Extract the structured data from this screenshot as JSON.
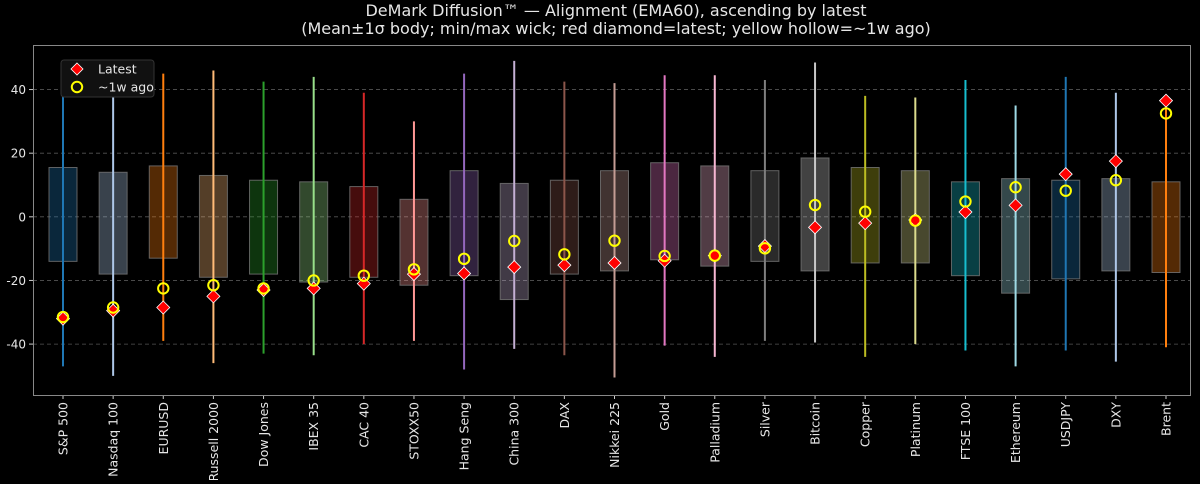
{
  "chart_data": {
    "type": "box-range",
    "title": "DeMark Diffusion™ — Alignment (EMA60), ascending by latest",
    "subtitle": "(Mean±1σ body; min/max wick; red diamond=latest; yellow hollow=~1w ago)",
    "xlabel": "",
    "ylabel": "",
    "ylim": [
      -56,
      54
    ],
    "yticks": [
      -40,
      -20,
      0,
      20,
      40
    ],
    "grid": "horizontal dashed",
    "legend": {
      "placement": "top-left",
      "entries": [
        {
          "label": "Latest",
          "marker": "red diamond",
          "color": "#ff0000"
        },
        {
          "label": "~1w ago",
          "marker": "yellow hollow circle",
          "color": "#ffff00"
        }
      ]
    },
    "categories": [
      "S&P 500",
      "Nasdaq 100",
      "EURUSD",
      "Russell 2000",
      "Dow Jones",
      "IBEX 35",
      "CAC 40",
      "STOXX50",
      "Hang Seng",
      "China 300",
      "DAX",
      "Nikkei 225",
      "Gold",
      "Palladium",
      "Silver",
      "Bitcoin",
      "Copper",
      "Platinum",
      "FTSE 100",
      "Ethereum",
      "USDJPY",
      "DXY",
      "Brent"
    ],
    "colors": [
      "#1f77b4",
      "#aec7e8",
      "#ff7f0e",
      "#ffbb78",
      "#2ca02c",
      "#98df8a",
      "#d62728",
      "#ff9896",
      "#9467bd",
      "#c5b0d5",
      "#8c564b",
      "#c49c94",
      "#e377c2",
      "#f7b6d2",
      "#7f7f7f",
      "#c7c7c7",
      "#bcbd22",
      "#dbdb8d",
      "#17becf",
      "#9edae5",
      "#1f77b4",
      "#aec7e8",
      "#ff7f0e"
    ],
    "body_high": [
      15.5,
      14,
      16,
      13,
      11.5,
      11,
      9.5,
      5.5,
      14.5,
      10.5,
      11.5,
      14.5,
      17,
      16,
      14.5,
      18.5,
      15.5,
      14.5,
      11,
      12,
      11.5,
      12,
      11
    ],
    "body_low": [
      -14,
      -18,
      -13,
      -19,
      -18,
      -20.5,
      -19,
      -21.5,
      -18.5,
      -26,
      -18,
      -17,
      -13.5,
      -15.5,
      -14,
      -17,
      -14.5,
      -14.5,
      -18.5,
      -24,
      -19.5,
      -17,
      -17.5
    ],
    "max": [
      46,
      46,
      45,
      46,
      42.5,
      44,
      39,
      30,
      45,
      49,
      42.5,
      42,
      44.5,
      44.5,
      43,
      48.5,
      38,
      37.5,
      43,
      35,
      44,
      39,
      36.5
    ],
    "min": [
      -47,
      -50,
      -39,
      -46,
      -43,
      -43.5,
      -40,
      -39,
      -48,
      -41.5,
      -43.5,
      -50.5,
      -40.5,
      -44,
      -39,
      -39.5,
      -44,
      -40,
      -42,
      -47,
      -42,
      -45.5,
      -41
    ],
    "latest": [
      -32,
      -29.5,
      -28.5,
      -25,
      -23,
      -22.5,
      -21,
      -18,
      -17.8,
      -15.8,
      -15.2,
      -14.5,
      -13.8,
      -12.2,
      -9.2,
      -3.3,
      -2,
      -1,
      1.5,
      3.6,
      13.4,
      17.5,
      36.5
    ],
    "week_ago": [
      -31.5,
      -28.5,
      -22.5,
      -21.5,
      -22.5,
      -20,
      -18.5,
      -16.5,
      -13.2,
      -7.6,
      -11.8,
      -7.5,
      -12.3,
      -12.2,
      -9.9,
      3.7,
      1.6,
      -1.2,
      4.8,
      9.3,
      8.2,
      11.5,
      32.5
    ]
  }
}
